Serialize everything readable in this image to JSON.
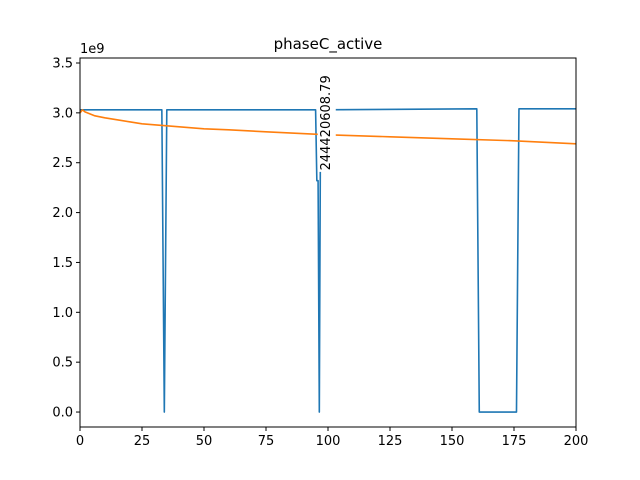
{
  "chart_data": {
    "type": "line",
    "title": "phaseC_active",
    "xlabel": "",
    "ylabel": "",
    "offset_text": "1e9",
    "xlim": [
      0,
      200
    ],
    "ylim": [
      -0.15,
      3.55
    ],
    "xticks": [
      0,
      25,
      50,
      75,
      100,
      125,
      150,
      175,
      200
    ],
    "xtick_labels": [
      "0",
      "25",
      "50",
      "75",
      "100",
      "125",
      "150",
      "175",
      "200"
    ],
    "yticks": [
      0.0,
      0.5,
      1.0,
      1.5,
      2.0,
      2.5,
      3.0,
      3.5
    ],
    "ytick_labels": [
      "0.0",
      "0.5",
      "1.0",
      "1.5",
      "2.0",
      "2.5",
      "3.0",
      "3.5"
    ],
    "grid": false,
    "legend": "none",
    "series": [
      {
        "color": "#1f77b4",
        "x": [
          0,
          33,
          34,
          35,
          95,
          95.5,
          96,
          96.5,
          97,
          160,
          161,
          176,
          177,
          200
        ],
        "y": [
          3.03,
          3.03,
          0.0,
          3.03,
          3.03,
          2.32,
          2.32,
          0.0,
          3.03,
          3.04,
          0.0,
          0.0,
          3.04,
          3.04
        ]
      },
      {
        "color": "#ff7f0e",
        "x": [
          0,
          1,
          2,
          3,
          4,
          5,
          6,
          8,
          10,
          15,
          20,
          25,
          30,
          40,
          50,
          60,
          75,
          100,
          125,
          150,
          175,
          200
        ],
        "y": [
          3.0,
          3.03,
          3.01,
          3.0,
          2.99,
          2.98,
          2.97,
          2.96,
          2.95,
          2.93,
          2.91,
          2.89,
          2.88,
          2.86,
          2.84,
          2.83,
          2.81,
          2.78,
          2.76,
          2.74,
          2.72,
          2.69
        ]
      }
    ],
    "annotations": [
      {
        "text": "244420608.79",
        "x": 99.5,
        "y": 2.9,
        "rotation": 90
      }
    ]
  }
}
